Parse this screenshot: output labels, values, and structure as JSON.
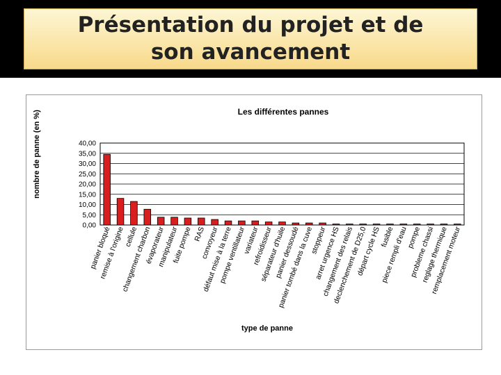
{
  "slide": {
    "title": "Présentation du projet et de son avancement"
  },
  "colors": {
    "bar": "#d81e1e",
    "band": "#000000"
  },
  "chart_data": {
    "type": "bar",
    "title": "Les différentes pannes",
    "xlabel": "type de panne",
    "ylabel": "nombre de panne (en %)",
    "ylim": [
      0,
      40
    ],
    "yticks": [
      "0,00",
      "5,00",
      "10,00",
      "15,00",
      "20,00",
      "25,00",
      "30,00",
      "35,00",
      "40,00"
    ],
    "grid": true,
    "categories": [
      "panier bloqué",
      "remise à l'origine",
      "cellule",
      "changement charbon",
      "évaporateur",
      "manipulateur",
      "fuite pompe",
      "RAS",
      "convoyeur",
      "défaut mise à la terre",
      "pompe ventillateur",
      "variateur",
      "refroidisseur",
      "séparateur d'huile",
      "panier dessoudé",
      "panier tombé dans la cuve",
      "stoppeur",
      "arret urgence HS",
      "changement des relais",
      "declenchement de D25,0",
      "départ cycle HS",
      "fusible",
      "piece rempli d'eau",
      "pompe",
      "probleme chassi",
      "reglage thermique",
      "remplacement moteur"
    ],
    "values": [
      34.5,
      13.0,
      11.5,
      7.7,
      3.8,
      3.8,
      3.4,
      3.4,
      2.7,
      2.0,
      2.0,
      2.0,
      1.5,
      1.5,
      1.0,
      1.0,
      1.0,
      0.5,
      0.5,
      0.5,
      0.5,
      0.5,
      0.5,
      0.5,
      0.5,
      0.5,
      0.5
    ]
  }
}
